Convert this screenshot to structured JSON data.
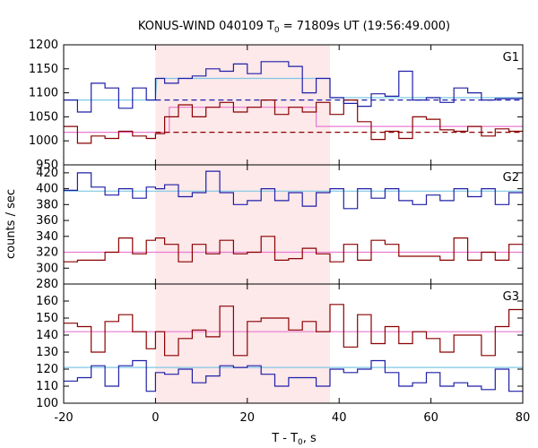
{
  "chart_data": {
    "type": "line",
    "title_prefix": "KONUS-WIND 040109 T",
    "title_sub": "0",
    "title_suffix": " = 71809s UT (19:56:49.000)",
    "xlabel_prefix": "T - T",
    "xlabel_sub": "0",
    "xlabel_suffix": ", s",
    "ylabel": "counts / sec",
    "xlim": [
      -20,
      80
    ],
    "x_ticks": [
      -20,
      0,
      20,
      40,
      60,
      80
    ],
    "highlight": {
      "x0": 0,
      "x1": 38,
      "color": "#fde8ea"
    },
    "colors": {
      "blue": "#1f1fa8",
      "red": "#8b0000",
      "cyan": "#7ec8e3",
      "pink": "#e87ad0"
    },
    "bin_edges": [
      -20,
      -17,
      -14,
      -11,
      -8,
      -5,
      -2,
      0,
      2,
      5,
      8,
      11,
      14,
      17,
      20,
      23,
      26,
      29,
      32,
      35,
      38,
      41,
      44,
      47,
      50,
      53,
      56,
      59,
      62,
      65,
      68,
      71,
      74,
      77,
      80
    ],
    "panels": [
      {
        "label": "G1",
        "ylim": [
          950,
          1200
        ],
        "y_ticks": [
          950,
          1000,
          1050,
          1100,
          1150,
          1200
        ],
        "blue": [
          1085,
          1060,
          1120,
          1110,
          1068,
          1110,
          1085,
          1130,
          1120,
          1130,
          1135,
          1150,
          1145,
          1160,
          1140,
          1165,
          1165,
          1155,
          1100,
          1130,
          1090,
          1078,
          1072,
          1098,
          1093,
          1145,
          1085,
          1090,
          1080,
          1110,
          1100,
          1085,
          1088,
          1088
        ],
        "red": [
          1030,
          995,
          1010,
          1005,
          1020,
          1010,
          1005,
          1015,
          1050,
          1075,
          1050,
          1070,
          1080,
          1060,
          1070,
          1085,
          1055,
          1070,
          1060,
          1080,
          1055,
          1085,
          1040,
          1003,
          1020,
          1005,
          1050,
          1045,
          1023,
          1020,
          1030,
          1010,
          1025,
          1020
        ],
        "blue_fit": [
          [
            -20,
            1085
          ],
          [
            0,
            1085
          ],
          [
            0.3,
            1130
          ],
          [
            38,
            1130
          ],
          [
            38,
            1090
          ],
          [
            80,
            1090
          ]
        ],
        "red_fit": [
          [
            -20,
            1018
          ],
          [
            0,
            1018
          ],
          [
            3,
            1018
          ],
          [
            3,
            1070
          ],
          [
            35,
            1070
          ],
          [
            35,
            1030
          ],
          [
            80,
            1030
          ]
        ],
        "blue_dash": [
          [
            0,
            1085
          ],
          [
            80,
            1085
          ]
        ],
        "red_dash": [
          [
            0,
            1018
          ],
          [
            80,
            1018
          ]
        ]
      },
      {
        "label": "G2",
        "ylim": [
          280,
          430
        ],
        "y_ticks": [
          280,
          300,
          320,
          340,
          360,
          380,
          400,
          420
        ],
        "blue": [
          398,
          420,
          402,
          392,
          400,
          388,
          402,
          400,
          405,
          390,
          395,
          422,
          395,
          380,
          385,
          400,
          385,
          395,
          378,
          395,
          400,
          375,
          400,
          388,
          400,
          385,
          380,
          392,
          385,
          400,
          390,
          400,
          380,
          395
        ],
        "red": [
          308,
          310,
          310,
          320,
          338,
          318,
          335,
          338,
          330,
          308,
          330,
          318,
          335,
          318,
          320,
          340,
          310,
          312,
          325,
          318,
          308,
          330,
          310,
          335,
          330,
          315,
          315,
          315,
          310,
          338,
          310,
          320,
          310,
          330
        ],
        "blue_fit": [
          [
            -20,
            397
          ],
          [
            80,
            397
          ]
        ],
        "red_fit": [
          [
            -20,
            320
          ],
          [
            80,
            320
          ]
        ]
      },
      {
        "label": "G3",
        "ylim": [
          100,
          170
        ],
        "y_ticks": [
          100,
          110,
          120,
          130,
          140,
          150,
          160
        ],
        "blue": [
          113,
          115,
          122,
          110,
          122,
          125,
          107,
          118,
          117,
          120,
          112,
          116,
          122,
          121,
          122,
          117,
          110,
          115,
          115,
          110,
          120,
          118,
          120,
          125,
          118,
          110,
          112,
          118,
          110,
          112,
          110,
          108,
          120,
          107
        ],
        "red": [
          147,
          145,
          130,
          148,
          152,
          142,
          132,
          142,
          128,
          138,
          143,
          139,
          157,
          128,
          148,
          150,
          150,
          143,
          148,
          142,
          158,
          133,
          152,
          135,
          145,
          135,
          142,
          138,
          130,
          140,
          140,
          128,
          145,
          155
        ],
        "blue_fit": [
          [
            -20,
            121
          ],
          [
            80,
            121
          ]
        ],
        "red_fit": [
          [
            -20,
            142
          ],
          [
            80,
            142
          ]
        ]
      }
    ]
  }
}
